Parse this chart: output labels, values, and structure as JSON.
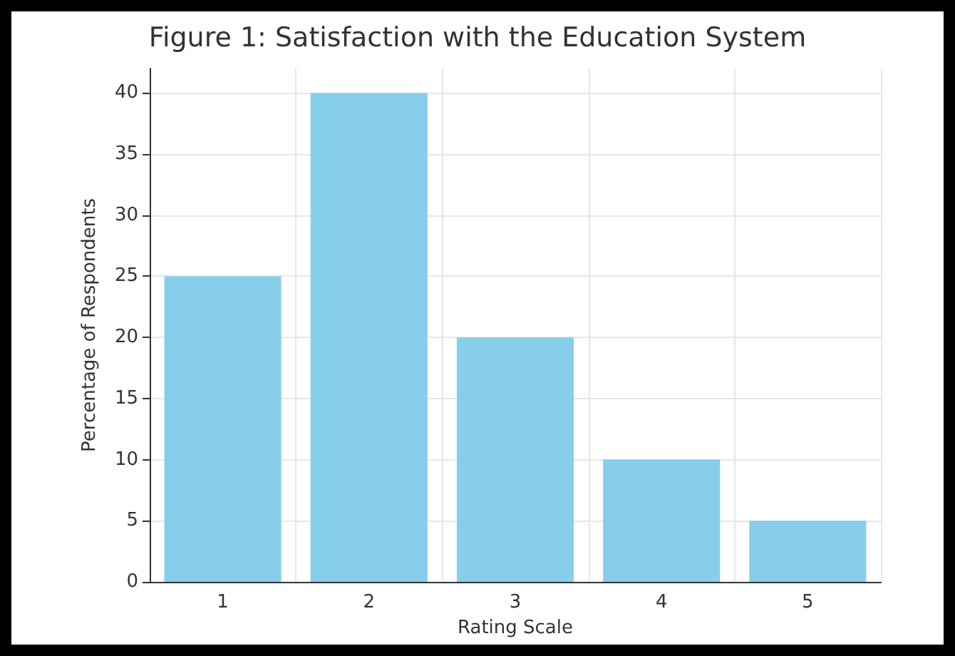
{
  "chart_data": {
    "type": "bar",
    "title": "Figure 1: Satisfaction with the Education System",
    "xlabel": "Rating Scale",
    "ylabel": "Percentage of Respondents",
    "categories": [
      "1",
      "2",
      "3",
      "4",
      "5"
    ],
    "values": [
      25,
      40,
      20,
      10,
      5
    ],
    "color": "#87ceeb",
    "ylim": [
      0,
      42
    ],
    "yticks": [
      0,
      5,
      10,
      15,
      20,
      25,
      30,
      35,
      40
    ],
    "grid": true
  }
}
